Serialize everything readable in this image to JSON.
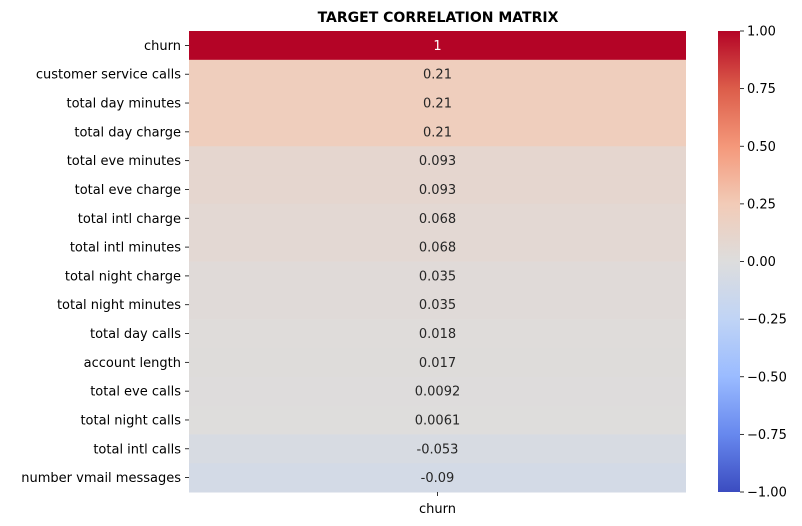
{
  "chart_data": {
    "type": "heatmap",
    "title": "TARGET CORRELATION MATRIX",
    "column_labels": [
      "churn"
    ],
    "row_labels": [
      "churn",
      "customer service calls",
      "total day minutes",
      "total day charge",
      "total eve minutes",
      "total eve charge",
      "total intl charge",
      "total intl minutes",
      "total night charge",
      "total night minutes",
      "total day calls",
      "account length",
      "total eve calls",
      "total night calls",
      "total intl calls",
      "number vmail messages"
    ],
    "values": [
      1,
      0.21,
      0.21,
      0.21,
      0.093,
      0.093,
      0.068,
      0.068,
      0.035,
      0.035,
      0.018,
      0.017,
      0.0092,
      0.0061,
      -0.053,
      -0.09
    ],
    "annotations": [
      "1",
      "0.21",
      "0.21",
      "0.21",
      "0.093",
      "0.093",
      "0.068",
      "0.068",
      "0.035",
      "0.035",
      "0.018",
      "0.017",
      "0.0092",
      "0.0061",
      "-0.053",
      "-0.09"
    ],
    "colormap": "coolwarm",
    "vmin": -1,
    "vmax": 1,
    "colorbar_ticks": [
      1.0,
      0.75,
      0.5,
      0.25,
      0.0,
      -0.25,
      -0.5,
      -0.75,
      -1.0
    ],
    "colorbar_tick_labels": [
      "1.00",
      "0.75",
      "0.50",
      "0.25",
      "0.00",
      "−0.25",
      "−0.50",
      "−0.75",
      "−1.00"
    ],
    "colors": {
      "low": "#3b4cc0",
      "mid": "#dddddd",
      "high": "#b40426"
    }
  }
}
